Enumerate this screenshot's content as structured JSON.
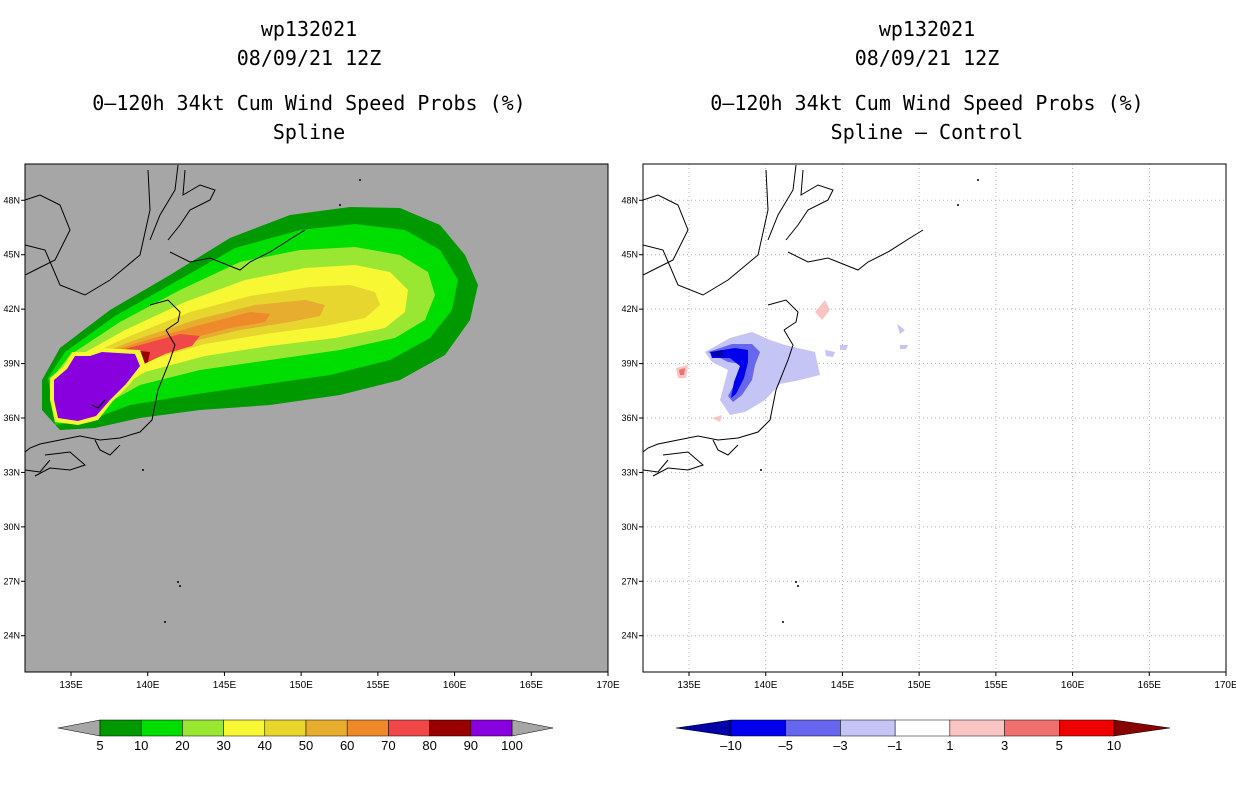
{
  "left_panel": {
    "storm_id": "wp132021",
    "datetime": "08/09/21 12Z",
    "title": "0–120h 34kt Cum Wind Speed Probs (%)",
    "subtitle": "Spline"
  },
  "right_panel": {
    "storm_id": "wp132021",
    "datetime": "08/09/21 12Z",
    "title": "0–120h 34kt Cum Wind Speed Probs (%)",
    "subtitle": "Spline – Control"
  },
  "chart_data": [
    {
      "type": "heatmap",
      "title": "0–120h 34kt Cum Wind Speed Probs (%) — Spline",
      "x_ticks": [
        "135E",
        "140E",
        "145E",
        "150E",
        "155E",
        "160E",
        "165E",
        "170E"
      ],
      "y_ticks": [
        "24N",
        "27N",
        "30N",
        "33N",
        "36N",
        "39N",
        "42N",
        "45N",
        "48N"
      ],
      "xlim": [
        132,
        170
      ],
      "ylim": [
        22,
        50
      ],
      "colorbar": {
        "labels": [
          "5",
          "10",
          "20",
          "30",
          "40",
          "50",
          "60",
          "70",
          "80",
          "90",
          "100"
        ],
        "colors": [
          "#009900",
          "#00dd00",
          "#99e633",
          "#f7f733",
          "#e6d62e",
          "#e6ad2e",
          "#ee8a2a",
          "#f04848",
          "#990000",
          "#8800dd"
        ],
        "under_color": "#a6a6a6",
        "over_color": "#a6a6a6"
      },
      "background_color": "#a6a6a6"
    },
    {
      "type": "heatmap",
      "title": "0–120h 34kt Cum Wind Speed Probs (%) — Spline – Control",
      "x_ticks": [
        "135E",
        "140E",
        "145E",
        "150E",
        "155E",
        "160E",
        "165E",
        "170E"
      ],
      "y_ticks": [
        "24N",
        "27N",
        "30N",
        "33N",
        "36N",
        "39N",
        "42N",
        "45N",
        "48N"
      ],
      "xlim": [
        132,
        170
      ],
      "ylim": [
        22,
        50
      ],
      "colorbar": {
        "labels": [
          "–10",
          "–5",
          "–3",
          "–1",
          "1",
          "3",
          "5",
          "10"
        ],
        "colors": [
          "#0000ee",
          "#6666ee",
          "#c4c4f5",
          "#ffffff",
          "#f8c4c4",
          "#f07070",
          "#ee0000"
        ],
        "under_color": "#0000aa",
        "over_color": "#880000"
      },
      "background_color": "#ffffff"
    }
  ]
}
